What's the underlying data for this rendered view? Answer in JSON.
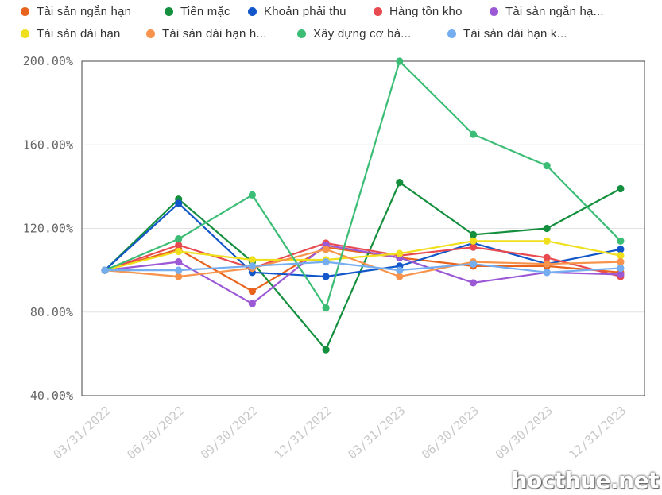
{
  "chart_data": {
    "type": "line",
    "categories": [
      "03/31/2022",
      "06/30/2022",
      "09/30/2022",
      "12/31/2022",
      "03/31/2023",
      "06/30/2023",
      "09/30/2023",
      "12/31/2023"
    ],
    "y_tick_labels": [
      "200.00%",
      "160.00%",
      "120.00%",
      "80.00%",
      "40.00%"
    ],
    "y_ticks": [
      200,
      160,
      120,
      80,
      40
    ],
    "ylim": [
      40,
      200
    ],
    "grid": true,
    "legend_position": "top",
    "series": [
      {
        "name": "Tài sản ngắn hạn",
        "color": "#e8641e",
        "values": [
          100,
          110,
          90,
          111,
          106,
          102,
          102,
          99
        ]
      },
      {
        "name": "Tiền mặc",
        "color": "#148f3e",
        "values": [
          100,
          134,
          104,
          62,
          142,
          117,
          120,
          139
        ]
      },
      {
        "name": "Khoản phải thu",
        "color": "#1257c9",
        "values": [
          100,
          132,
          99,
          97,
          102,
          113,
          103,
          110
        ]
      },
      {
        "name": "Hàng tồn kho",
        "color": "#e84a4f",
        "values": [
          100,
          112,
          101,
          113,
          107,
          111,
          106,
          97
        ]
      },
      {
        "name": "Tài sản ngắn hạ...",
        "color": "#9b59d6",
        "values": [
          100,
          104,
          84,
          112,
          106,
          94,
          99,
          98
        ]
      },
      {
        "name": "Tài sản dài hạn",
        "color": "#f0df1c",
        "values": [
          100,
          109,
          105,
          105,
          108,
          114,
          114,
          107
        ]
      },
      {
        "name": "Tài sản dài hạn h...",
        "color": "#f7934b",
        "values": [
          100,
          97,
          101,
          110,
          97,
          104,
          103,
          104
        ]
      },
      {
        "name": "Xây dựng cơ bả...",
        "color": "#3bbd76",
        "values": [
          100,
          115,
          136,
          82,
          200,
          165,
          150,
          114
        ]
      },
      {
        "name": "Tài sản dài hạn k...",
        "color": "#74adf0",
        "values": [
          100,
          100,
          102,
          104,
          100,
          103,
          99,
          101
        ]
      }
    ]
  },
  "watermark": "hocthue.net"
}
